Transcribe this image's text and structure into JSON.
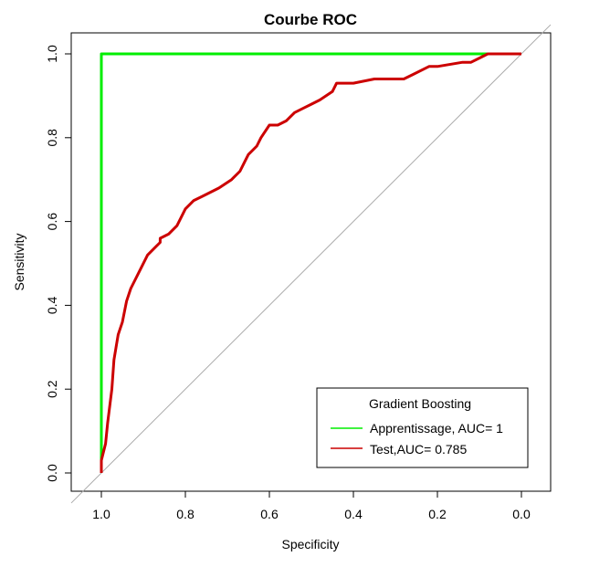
{
  "chart_data": {
    "type": "line",
    "title": "Courbe ROC",
    "xlabel": "Specificity",
    "ylabel": "Sensitivity",
    "x_reversed": true,
    "xlim": [
      1.0,
      0.0
    ],
    "ylim": [
      0.0,
      1.0
    ],
    "x_ticks": [
      1.0,
      0.8,
      0.6,
      0.4,
      0.2,
      0.0
    ],
    "x_tick_labels": [
      "1.0",
      "0.8",
      "0.6",
      "0.4",
      "0.2",
      "0.0"
    ],
    "y_ticks": [
      0.0,
      0.2,
      0.4,
      0.6,
      0.8,
      1.0
    ],
    "y_tick_labels": [
      "0.0",
      "0.2",
      "0.4",
      "0.6",
      "0.8",
      "1.0"
    ],
    "grid": false,
    "reference_line": {
      "from": [
        1.0,
        0.0
      ],
      "to": [
        0.0,
        1.0
      ],
      "color": "#aaaaaa"
    },
    "legend": {
      "title": "Gradient Boosting",
      "position": "bottom-right"
    },
    "series": [
      {
        "name": "Apprentissage, AUC= 1",
        "color": "#00ee00",
        "x": [
          1.0,
          1.0,
          0.1,
          0.0
        ],
        "y": [
          0.0,
          1.0,
          1.0,
          1.0
        ]
      },
      {
        "name": "Test,AUC= 0.785",
        "color": "#cc0000",
        "x": [
          1.0,
          1.0,
          0.99,
          0.985,
          0.98,
          0.975,
          0.97,
          0.965,
          0.96,
          0.95,
          0.94,
          0.93,
          0.91,
          0.89,
          0.87,
          0.86,
          0.86,
          0.84,
          0.82,
          0.8,
          0.78,
          0.76,
          0.72,
          0.69,
          0.67,
          0.66,
          0.65,
          0.63,
          0.62,
          0.6,
          0.58,
          0.56,
          0.54,
          0.52,
          0.5,
          0.48,
          0.45,
          0.44,
          0.4,
          0.35,
          0.28,
          0.26,
          0.22,
          0.2,
          0.14,
          0.12,
          0.1,
          0.08,
          0.05,
          0.0
        ],
        "y": [
          0.0,
          0.03,
          0.07,
          0.12,
          0.16,
          0.2,
          0.27,
          0.3,
          0.33,
          0.36,
          0.41,
          0.44,
          0.48,
          0.52,
          0.54,
          0.55,
          0.56,
          0.57,
          0.59,
          0.63,
          0.65,
          0.66,
          0.68,
          0.7,
          0.72,
          0.74,
          0.76,
          0.78,
          0.8,
          0.83,
          0.83,
          0.84,
          0.86,
          0.87,
          0.88,
          0.89,
          0.91,
          0.93,
          0.93,
          0.94,
          0.94,
          0.95,
          0.97,
          0.97,
          0.98,
          0.98,
          0.99,
          1.0,
          1.0,
          1.0
        ]
      }
    ]
  }
}
